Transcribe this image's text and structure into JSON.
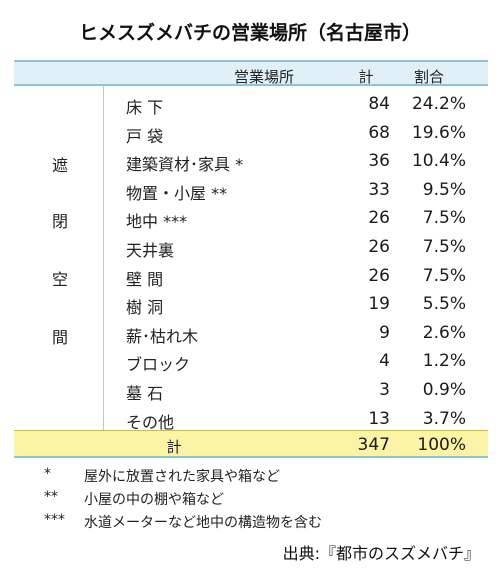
{
  "title": "ヒメスズメバチの営業場所（名古屋市）",
  "table": {
    "headers": {
      "place": "営業場所",
      "count": "計",
      "ratio": "割合"
    },
    "group_label_chars": [
      "遮",
      "閉",
      "空",
      "間"
    ],
    "rows": [
      {
        "place": "床 下",
        "count": "84",
        "ratio": "24.2%"
      },
      {
        "place": "戸 袋",
        "count": "68",
        "ratio": "19.6%"
      },
      {
        "place": "建築資材･家具 *",
        "count": "36",
        "ratio": "10.4%"
      },
      {
        "place": "物置・小屋 **",
        "count": "33",
        "ratio": "9.5%"
      },
      {
        "place": "地中 ***",
        "count": "26",
        "ratio": "7.5%"
      },
      {
        "place": "天井裏",
        "count": "26",
        "ratio": "7.5%"
      },
      {
        "place": "壁 間",
        "count": "26",
        "ratio": "7.5%"
      },
      {
        "place": "樹 洞",
        "count": "19",
        "ratio": "5.5%"
      },
      {
        "place": "薪･枯れ木",
        "count": "9",
        "ratio": "2.6%"
      },
      {
        "place": "ブロック",
        "count": "4",
        "ratio": "1.2%"
      },
      {
        "place": "墓 石",
        "count": "3",
        "ratio": "0.9%"
      },
      {
        "place": "その他",
        "count": "13",
        "ratio": "3.7%"
      }
    ],
    "total": {
      "label": "計",
      "count": "347",
      "ratio": "100%"
    }
  },
  "notes": [
    {
      "mark": "*",
      "text": "屋外に放置された家具や箱など"
    },
    {
      "mark": "**",
      "text": "小屋の中の棚や箱など"
    },
    {
      "mark": "***",
      "text": "水道メーターなど地中の構造物を含む"
    }
  ],
  "source": "出典:『都市のスズメバチ』",
  "colors": {
    "header_bg": "#e1f0f6",
    "header_border": "#8cc6d6",
    "total_bg": "#fbf3a6"
  }
}
